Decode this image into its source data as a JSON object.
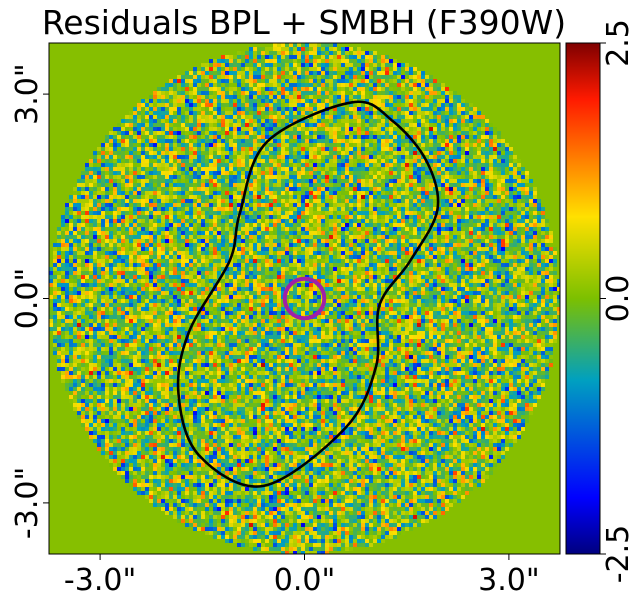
{
  "chart_data": {
    "type": "heatmap",
    "title": "Residuals BPL + SMBH (F390W)",
    "xlabel": "",
    "ylabel": "",
    "x_ticks": [
      {
        "value": -3.0,
        "label": "-3.0\""
      },
      {
        "value": 0.0,
        "label": "0.0\""
      },
      {
        "value": 3.0,
        "label": "3.0\""
      }
    ],
    "y_ticks": [
      {
        "value": -3.0,
        "label": "-3.0\""
      },
      {
        "value": 0.0,
        "label": "0.0\""
      },
      {
        "value": 3.0,
        "label": "3.0\""
      }
    ],
    "xlim": [
      -3.75,
      3.75
    ],
    "ylim": [
      -3.75,
      3.75
    ],
    "colorbar": {
      "min": -2.5,
      "max": 2.5,
      "ticks": [
        {
          "value": 2.5,
          "label": "2.5"
        },
        {
          "value": 0.0,
          "label": "0.0"
        },
        {
          "value": -2.5,
          "label": "-2.5"
        }
      ],
      "colormap": "jet"
    },
    "background_color": "#86bf00",
    "data_region": {
      "shape": "circle",
      "center": [
        0.0,
        0.0
      ],
      "radius_arcsec": 3.75
    },
    "contour": {
      "color": "#000000",
      "points": [
        [
          0.7,
          2.88
        ],
        [
          1.3,
          2.6
        ],
        [
          1.8,
          2.0
        ],
        [
          1.95,
          1.3
        ],
        [
          1.55,
          0.55
        ],
        [
          1.1,
          -0.1
        ],
        [
          1.05,
          -1.0
        ],
        [
          0.6,
          -1.9
        ],
        [
          -0.6,
          -2.75
        ],
        [
          -1.55,
          -2.3
        ],
        [
          -1.85,
          -1.4
        ],
        [
          -1.7,
          -0.5
        ],
        [
          -1.1,
          0.55
        ],
        [
          -0.95,
          1.25
        ],
        [
          -0.55,
          2.3
        ]
      ]
    },
    "marker": {
      "shape": "circle",
      "center": [
        0.0,
        0.0
      ],
      "radius_arcsec": 0.29,
      "color": "#a020a8"
    }
  }
}
